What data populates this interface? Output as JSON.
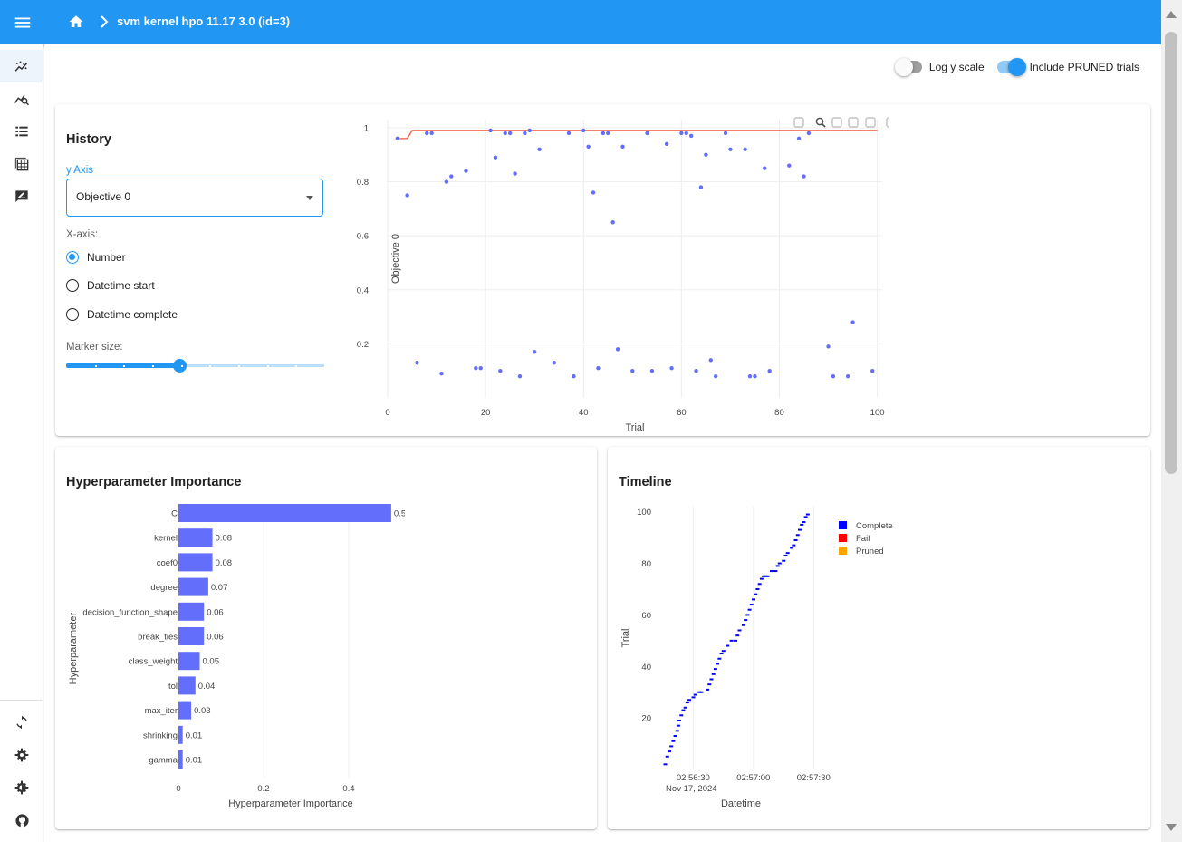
{
  "appbar": {
    "menu_icon": "menu-icon",
    "home_icon": "home-icon",
    "breadcrumb_separator_icon": "chevron-right-icon",
    "study_title": "svm kernel hpo 11.17 3.0 (id=3)"
  },
  "drawer": {
    "top_items": [
      {
        "name": "history-icon"
      },
      {
        "name": "analytics-icon"
      },
      {
        "name": "list-icon"
      },
      {
        "name": "table-icon"
      },
      {
        "name": "note-icon"
      }
    ],
    "bottom_items": [
      {
        "name": "reload-icon"
      },
      {
        "name": "settings-icon"
      },
      {
        "name": "dark-mode-icon"
      },
      {
        "name": "github-icon"
      }
    ]
  },
  "toolbar": {
    "log_y_scale": {
      "label": "Log y scale",
      "checked": false
    },
    "include_pruned": {
      "label": "Include PRUNED trials",
      "checked": true
    }
  },
  "history": {
    "title": "History",
    "y_axis_label": "y Axis",
    "y_axis_value": "Objective 0",
    "x_axis_label": "X-axis:",
    "x_axis_options": [
      "Number",
      "Datetime start",
      "Datetime complete"
    ],
    "x_axis_selected": 0,
    "marker_size_label": "Marker size:",
    "marker_size_fraction": 0.44,
    "plot_toolbar_icons": [
      "camera-icon",
      "zoom-icon",
      "pan-icon",
      "box-select-icon",
      "lasso-select-icon",
      "zoom-in-icon",
      "zoom-out-icon",
      "autoscale-icon",
      "reset-axes-icon",
      "plotly-logo-icon"
    ]
  },
  "importance": {
    "title": "Hyperparameter Importance"
  },
  "timeline": {
    "title": "Timeline"
  },
  "colors": {
    "accent": "#2196f3",
    "point": "#636efa",
    "best_line": "#ef553b",
    "complete": "#0000ff",
    "fail": "#ff0000",
    "pruned": "#ffa500"
  },
  "chart_data": [
    {
      "type": "scatter",
      "xlabel": "Trial",
      "ylabel": "Objective 0",
      "xlim": [
        0,
        101
      ],
      "ylim": [
        0,
        1.03
      ],
      "x_ticks": [
        0,
        20,
        40,
        60,
        80,
        100
      ],
      "y_ticks": [
        0.2,
        0.4,
        0.6,
        0.8,
        1
      ],
      "grid": true,
      "points": [
        [
          2,
          0.96
        ],
        [
          4,
          0.75
        ],
        [
          6,
          0.13
        ],
        [
          8,
          0.98
        ],
        [
          9,
          0.98
        ],
        [
          11,
          0.09
        ],
        [
          12,
          0.8
        ],
        [
          13,
          0.82
        ],
        [
          16,
          0.84
        ],
        [
          18,
          0.11
        ],
        [
          19,
          0.11
        ],
        [
          21,
          0.99
        ],
        [
          22,
          0.89
        ],
        [
          23,
          0.1
        ],
        [
          24,
          0.98
        ],
        [
          25,
          0.98
        ],
        [
          26,
          0.83
        ],
        [
          27,
          0.08
        ],
        [
          28,
          0.98
        ],
        [
          29,
          0.99
        ],
        [
          30,
          0.17
        ],
        [
          31,
          0.92
        ],
        [
          34,
          0.13
        ],
        [
          37,
          0.98
        ],
        [
          38,
          0.08
        ],
        [
          40,
          0.99
        ],
        [
          41,
          0.93
        ],
        [
          42,
          0.76
        ],
        [
          43,
          0.11
        ],
        [
          44,
          0.98
        ],
        [
          45,
          0.98
        ],
        [
          46,
          0.65
        ],
        [
          47,
          0.18
        ],
        [
          48,
          0.93
        ],
        [
          50,
          0.1
        ],
        [
          53,
          0.98
        ],
        [
          54,
          0.1
        ],
        [
          57,
          0.94
        ],
        [
          58,
          0.11
        ],
        [
          60,
          0.98
        ],
        [
          61,
          0.98
        ],
        [
          62,
          0.97
        ],
        [
          63,
          0.1
        ],
        [
          64,
          0.78
        ],
        [
          65,
          0.9
        ],
        [
          66,
          0.14
        ],
        [
          67,
          0.08
        ],
        [
          69,
          0.98
        ],
        [
          70,
          0.92
        ],
        [
          73,
          0.92
        ],
        [
          74,
          0.08
        ],
        [
          75,
          0.08
        ],
        [
          77,
          0.85
        ],
        [
          78,
          0.1
        ],
        [
          82,
          0.86
        ],
        [
          84,
          0.96
        ],
        [
          85,
          0.82
        ],
        [
          86,
          0.98
        ],
        [
          90,
          0.19
        ],
        [
          91,
          0.08
        ],
        [
          94,
          0.08
        ],
        [
          95,
          0.28
        ],
        [
          99,
          0.1
        ]
      ],
      "best_values": [
        [
          2,
          0.96
        ],
        [
          4,
          0.96
        ],
        [
          5,
          0.99
        ],
        [
          100,
          0.99
        ]
      ]
    },
    {
      "type": "bar",
      "orientation": "horizontal",
      "xlabel": "Hyperparameter Importance",
      "ylabel": "Hyperparameter",
      "xlim": [
        0,
        0.53
      ],
      "x_ticks": [
        0,
        0.2,
        0.4
      ],
      "categories": [
        "C",
        "kernel",
        "coef0",
        "degree",
        "decision_function_shape",
        "break_ties",
        "class_weight",
        "tol",
        "max_iter",
        "shrinking",
        "gamma"
      ],
      "values": [
        0.5,
        0.08,
        0.08,
        0.07,
        0.06,
        0.06,
        0.05,
        0.04,
        0.03,
        0.01,
        0.01
      ],
      "value_labels": [
        "0.5",
        "0.08",
        "0.08",
        "0.07",
        "0.06",
        "0.06",
        "0.05",
        "0.04",
        "0.03",
        "0.01",
        "0.01"
      ]
    },
    {
      "type": "scatter",
      "xlabel": "Datetime",
      "ylabel": "Trial",
      "x_ticks": [
        "02:56:30",
        "02:57:00",
        "02:57:30"
      ],
      "x_tick_date": "Nov 17, 2024",
      "y_ticks": [
        20,
        40,
        60,
        80,
        100
      ],
      "xlim_seconds": [
        0,
        88
      ],
      "ylim": [
        0,
        102
      ],
      "legend_position": "top-right",
      "legend": [
        "Complete",
        "Fail",
        "Pruned"
      ],
      "series": [
        {
          "name": "Complete",
          "color": "#0000ff",
          "points": [
            [
              7,
              2
            ],
            [
              8,
              5
            ],
            [
              9,
              7
            ],
            [
              10,
              9
            ],
            [
              11,
              11
            ],
            [
              12,
              13
            ],
            [
              13,
              15
            ],
            [
              13.5,
              17
            ],
            [
              14,
              19
            ],
            [
              15,
              21
            ],
            [
              16,
              23
            ],
            [
              17,
              24
            ],
            [
              18,
              26
            ],
            [
              19,
              27
            ],
            [
              21,
              28
            ],
            [
              22,
              29
            ],
            [
              24,
              30
            ],
            [
              25,
              30
            ],
            [
              28,
              31
            ],
            [
              29,
              33
            ],
            [
              30,
              35
            ],
            [
              31,
              37
            ],
            [
              32,
              39
            ],
            [
              33,
              41
            ],
            [
              34,
              43
            ],
            [
              35,
              45
            ],
            [
              36,
              46
            ],
            [
              38,
              48
            ],
            [
              40,
              50
            ],
            [
              42,
              50
            ],
            [
              43,
              52
            ],
            [
              44,
              54
            ],
            [
              46,
              56
            ],
            [
              47,
              58
            ],
            [
              48,
              60
            ],
            [
              49,
              62
            ],
            [
              50,
              64
            ],
            [
              51,
              66
            ],
            [
              52,
              68
            ],
            [
              53,
              70
            ],
            [
              54,
              72
            ],
            [
              55,
              74
            ],
            [
              56,
              75
            ],
            [
              57,
              75
            ],
            [
              58,
              75
            ],
            [
              60,
              77
            ],
            [
              62,
              77
            ],
            [
              63,
              79
            ],
            [
              64,
              80
            ],
            [
              66,
              81
            ],
            [
              67,
              83
            ],
            [
              68,
              84
            ],
            [
              70,
              86
            ],
            [
              71,
              87
            ],
            [
              72,
              89
            ],
            [
              73,
              91
            ],
            [
              74,
              93
            ],
            [
              75,
              95
            ],
            [
              76,
              96
            ],
            [
              77,
              98
            ],
            [
              78,
              99
            ]
          ]
        },
        {
          "name": "Fail",
          "color": "#ff0000",
          "points": []
        },
        {
          "name": "Pruned",
          "color": "#ffa500",
          "points": []
        }
      ]
    }
  ]
}
